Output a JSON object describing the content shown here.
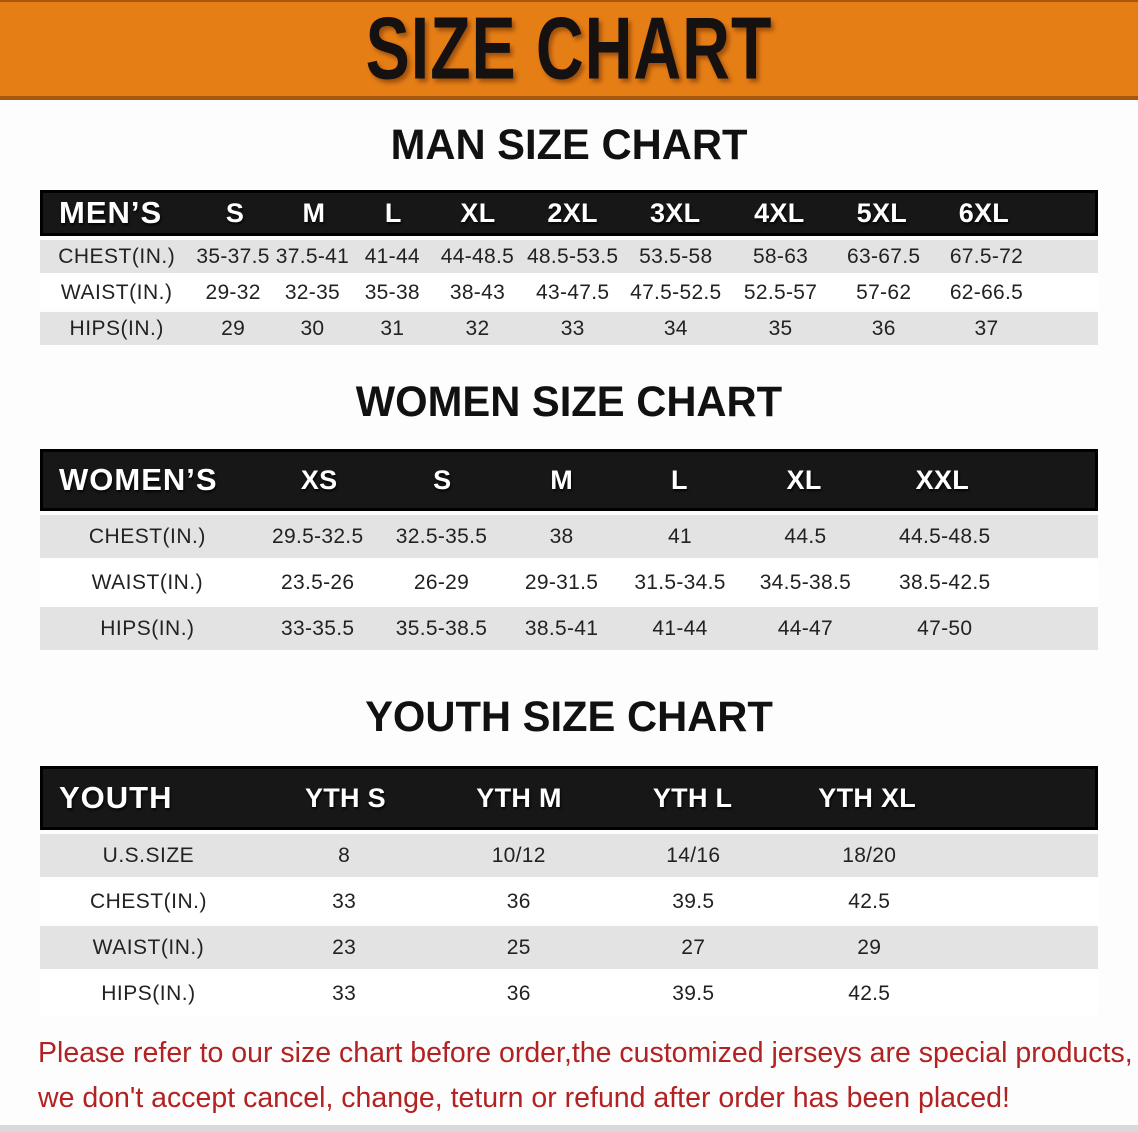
{
  "banner": {
    "title": "SIZE CHART"
  },
  "colors": {
    "banner_bg": "#e67e16",
    "banner_edge": "#a9570e",
    "header_bg": "#171717",
    "row_shaded": "#e3e3e3",
    "note_red": "#b22222"
  },
  "sections": [
    {
      "heading": "MAN SIZE CHART",
      "table": {
        "header": [
          "MEN’S",
          "S",
          "M",
          "L",
          "XL",
          "2XL",
          "3XL",
          "4XL",
          "5XL",
          "6XL"
        ],
        "col_widths": [
          "14.5%",
          "7.5%",
          "7.5%",
          "7.6%",
          "8.5%",
          "9.5%",
          "10%",
          "9.8%",
          "9.7%",
          "15.4%"
        ],
        "rows": [
          {
            "label": "CHEST(IN.)",
            "values": [
              "35-37.5",
              "37.5-41",
              "41-44",
              "44-48.5",
              "48.5-53.5",
              "53.5-58",
              "58-63",
              "63-67.5",
              "67.5-72"
            ]
          },
          {
            "label": "WAIST(IN.)",
            "values": [
              "29-32",
              "32-35",
              "35-38",
              "38-43",
              "43-47.5",
              "47.5-52.5",
              "52.5-57",
              "57-62",
              "62-66.5"
            ]
          },
          {
            "label": "HIPS(IN.)",
            "values": [
              "29",
              "30",
              "31",
              "32",
              "33",
              "34",
              "35",
              "36",
              "37"
            ]
          }
        ]
      }
    },
    {
      "heading": "WOMEN SIZE CHART",
      "table": {
        "header": [
          "WOMEN’S",
          "XS",
          "S",
          "M",
          "L",
          "XL",
          "XXL"
        ],
        "col_widths": [
          "20.3%",
          "11.9%",
          "11.5%",
          "11.2%",
          "11.2%",
          "12.5%",
          "21.4%"
        ],
        "rows": [
          {
            "label": "CHEST(IN.)",
            "values": [
              "29.5-32.5",
              "32.5-35.5",
              "38",
              "41",
              "44.5",
              "44.5-48.5"
            ]
          },
          {
            "label": "WAIST(IN.)",
            "values": [
              "23.5-26",
              "26-29",
              "29-31.5",
              "31.5-34.5",
              "34.5-38.5",
              "38.5-42.5"
            ]
          },
          {
            "label": "HIPS(IN.)",
            "values": [
              "33-35.5",
              "35.5-38.5",
              "38.5-41",
              "41-44",
              "44-47",
              "47-50"
            ]
          }
        ]
      }
    },
    {
      "heading": "YOUTH SIZE CHART",
      "table": {
        "header": [
          "YOUTH",
          "YTH S",
          "YTH M",
          "YTH L",
          "YTH XL"
        ],
        "col_widths": [
          "20.5%",
          "16.5%",
          "16.5%",
          "16.5%",
          "30%"
        ],
        "rows": [
          {
            "label": "U.S.SIZE",
            "values": [
              "8",
              "10/12",
              "14/16",
              "18/20"
            ]
          },
          {
            "label": "CHEST(IN.)",
            "values": [
              "33",
              "36",
              "39.5",
              "42.5"
            ]
          },
          {
            "label": "WAIST(IN.)",
            "values": [
              "23",
              "25",
              "27",
              "29"
            ]
          },
          {
            "label": "HIPS(IN.)",
            "values": [
              "33",
              "36",
              "39.5",
              "42.5"
            ]
          }
        ]
      }
    }
  ],
  "footer": {
    "lines": [
      "Please refer to our size chart before order,the customized jerseys are special products,",
      "we don't accept cancel, change, teturn or refund after order has been placed!"
    ]
  }
}
